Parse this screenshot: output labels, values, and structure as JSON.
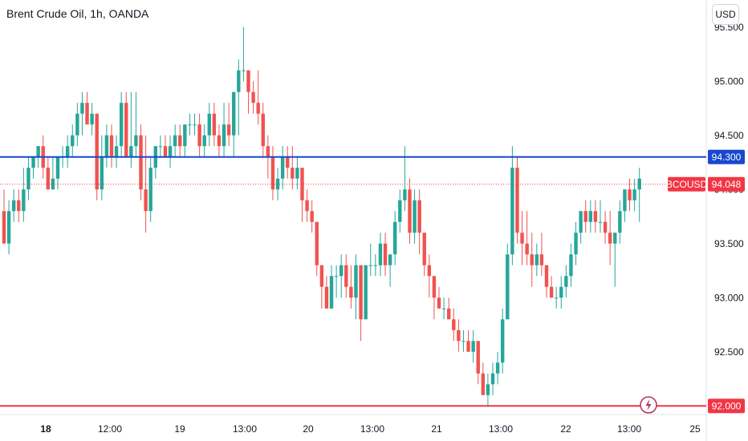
{
  "header": {
    "title": "Brent Crude Oil, 1h, OANDA",
    "currency": "USD"
  },
  "colors": {
    "up": "#26a69a",
    "down": "#ef5350",
    "resistance": "#1848cc",
    "support": "#f23645",
    "last_price": "#f23645"
  },
  "icons": {
    "alert": "lightning-alert-icon"
  },
  "chart_data": {
    "type": "candlestick",
    "title": "Brent Crude Oil, 1h, OANDA",
    "symbol": "BCOUSD",
    "ylim": [
      91.75,
      95.75
    ],
    "y_ticks": [
      "95.500",
      "95.000",
      "94.500",
      "94.000",
      "93.500",
      "93.000",
      "92.500",
      "92.000"
    ],
    "x_ticks": [
      {
        "label": "18",
        "bold": true
      },
      {
        "label": "12:00",
        "bold": false
      },
      {
        "label": "19",
        "bold": false
      },
      {
        "label": "13:00",
        "bold": false
      },
      {
        "label": "20",
        "bold": false
      },
      {
        "label": "13:00",
        "bold": false
      },
      {
        "label": "21",
        "bold": false
      },
      {
        "label": "13:00",
        "bold": false
      },
      {
        "label": "22",
        "bold": false
      },
      {
        "label": "13:00",
        "bold": false
      },
      {
        "label": "25",
        "bold": false
      }
    ],
    "horizontal_lines": [
      {
        "price": 94.3,
        "label": "94.300",
        "color": "#1848cc"
      },
      {
        "price": 92.0,
        "label": "92.000",
        "color": "#f23645"
      }
    ],
    "last_price": {
      "price": 94.048,
      "label": "94.048",
      "symbol": "BCOUSD"
    },
    "candles": [
      [
        93.8,
        94.0,
        93.5,
        93.5
      ],
      [
        93.5,
        93.9,
        93.4,
        93.8
      ],
      [
        93.8,
        94.0,
        93.7,
        93.9
      ],
      [
        93.9,
        94.0,
        93.7,
        93.8
      ],
      [
        93.8,
        94.2,
        93.7,
        94.0
      ],
      [
        94.0,
        94.3,
        93.9,
        94.2
      ],
      [
        94.2,
        94.3,
        94.1,
        94.3
      ],
      [
        94.3,
        94.4,
        94.2,
        94.4
      ],
      [
        94.4,
        94.5,
        94.1,
        94.2
      ],
      [
        94.2,
        94.3,
        94.0,
        94.0
      ],
      [
        94.0,
        94.3,
        94.0,
        94.1
      ],
      [
        94.1,
        94.3,
        94.0,
        94.3
      ],
      [
        94.3,
        94.4,
        94.2,
        94.3
      ],
      [
        94.3,
        94.5,
        94.2,
        94.4
      ],
      [
        94.4,
        94.6,
        94.3,
        94.5
      ],
      [
        94.5,
        94.8,
        94.4,
        94.7
      ],
      [
        94.7,
        94.9,
        94.5,
        94.8
      ],
      [
        94.8,
        94.9,
        94.6,
        94.6
      ],
      [
        94.6,
        94.8,
        94.5,
        94.7
      ],
      [
        94.7,
        94.7,
        93.9,
        94.0
      ],
      [
        94.0,
        94.5,
        93.9,
        94.3
      ],
      [
        94.3,
        94.6,
        94.2,
        94.5
      ],
      [
        94.5,
        94.6,
        94.2,
        94.3
      ],
      [
        94.3,
        94.5,
        94.2,
        94.4
      ],
      [
        94.4,
        94.9,
        94.3,
        94.8
      ],
      [
        94.8,
        94.9,
        94.3,
        94.3
      ],
      [
        94.3,
        94.9,
        94.2,
        94.4
      ],
      [
        94.4,
        94.9,
        94.3,
        94.5
      ],
      [
        94.5,
        94.6,
        93.9,
        94.0
      ],
      [
        94.0,
        94.5,
        93.6,
        93.8
      ],
      [
        93.8,
        94.3,
        93.7,
        94.2
      ],
      [
        94.2,
        94.4,
        94.1,
        94.4
      ],
      [
        94.4,
        94.5,
        94.3,
        94.4
      ],
      [
        94.4,
        94.5,
        94.3,
        94.3
      ],
      [
        94.3,
        94.5,
        94.2,
        94.4
      ],
      [
        94.4,
        94.6,
        94.3,
        94.5
      ],
      [
        94.5,
        94.6,
        94.3,
        94.4
      ],
      [
        94.4,
        94.6,
        94.3,
        94.6
      ],
      [
        94.6,
        94.7,
        94.5,
        94.6
      ],
      [
        94.6,
        94.7,
        94.5,
        94.6
      ],
      [
        94.6,
        94.7,
        94.3,
        94.4
      ],
      [
        94.4,
        94.6,
        94.3,
        94.5
      ],
      [
        94.5,
        94.8,
        94.4,
        94.7
      ],
      [
        94.7,
        94.8,
        94.4,
        94.5
      ],
      [
        94.5,
        94.6,
        94.3,
        94.4
      ],
      [
        94.4,
        94.8,
        94.3,
        94.6
      ],
      [
        94.6,
        94.8,
        94.4,
        94.5
      ],
      [
        94.5,
        94.9,
        94.3,
        94.9
      ],
      [
        94.9,
        95.2,
        94.5,
        95.1
      ],
      [
        95.1,
        95.5,
        95.0,
        95.1
      ],
      [
        95.1,
        95.1,
        94.7,
        94.9
      ],
      [
        94.9,
        95.0,
        94.7,
        94.8
      ],
      [
        94.8,
        95.1,
        94.6,
        94.7
      ],
      [
        94.7,
        94.8,
        94.3,
        94.4
      ],
      [
        94.4,
        94.5,
        94.1,
        94.3
      ],
      [
        94.3,
        94.4,
        93.9,
        94.0
      ],
      [
        94.0,
        94.2,
        93.9,
        94.1
      ],
      [
        94.1,
        94.4,
        94.0,
        94.3
      ],
      [
        94.3,
        94.4,
        94.1,
        94.2
      ],
      [
        94.2,
        94.4,
        94.0,
        94.1
      ],
      [
        94.1,
        94.3,
        94.0,
        94.2
      ],
      [
        94.2,
        94.2,
        93.7,
        93.9
      ],
      [
        93.9,
        94.0,
        93.7,
        93.8
      ],
      [
        93.8,
        93.9,
        93.6,
        93.7
      ],
      [
        93.7,
        93.7,
        93.2,
        93.3
      ],
      [
        93.3,
        93.3,
        92.9,
        93.1
      ],
      [
        93.1,
        93.2,
        92.9,
        92.9
      ],
      [
        92.9,
        93.3,
        92.9,
        93.2
      ],
      [
        93.2,
        93.3,
        93.0,
        93.2
      ],
      [
        93.2,
        93.4,
        93.0,
        93.3
      ],
      [
        93.3,
        93.4,
        93.0,
        93.1
      ],
      [
        93.1,
        93.3,
        92.9,
        93.0
      ],
      [
        93.0,
        93.4,
        92.8,
        93.3
      ],
      [
        93.3,
        93.3,
        92.6,
        92.8
      ],
      [
        92.8,
        93.3,
        92.8,
        93.3
      ],
      [
        93.3,
        93.5,
        93.2,
        93.3
      ],
      [
        93.3,
        93.4,
        93.2,
        93.3
      ],
      [
        93.3,
        93.6,
        93.2,
        93.5
      ],
      [
        93.5,
        93.6,
        93.2,
        93.3
      ],
      [
        93.3,
        93.4,
        93.1,
        93.4
      ],
      [
        93.4,
        93.8,
        93.3,
        93.7
      ],
      [
        93.7,
        94.0,
        93.6,
        93.9
      ],
      [
        93.9,
        94.4,
        93.8,
        94.0
      ],
      [
        94.0,
        94.1,
        93.5,
        93.6
      ],
      [
        93.6,
        94.0,
        93.5,
        93.9
      ],
      [
        93.9,
        94.0,
        93.4,
        93.6
      ],
      [
        93.6,
        93.6,
        93.2,
        93.3
      ],
      [
        93.3,
        93.4,
        93.0,
        93.2
      ],
      [
        93.2,
        93.2,
        92.8,
        93.0
      ],
      [
        93.0,
        93.1,
        92.9,
        92.9
      ],
      [
        92.9,
        93.0,
        92.8,
        92.9
      ],
      [
        92.9,
        93.0,
        92.8,
        92.8
      ],
      [
        92.8,
        92.9,
        92.6,
        92.7
      ],
      [
        92.7,
        92.8,
        92.5,
        92.6
      ],
      [
        92.6,
        92.7,
        92.5,
        92.6
      ],
      [
        92.6,
        92.7,
        92.5,
        92.5
      ],
      [
        92.5,
        92.7,
        92.4,
        92.6
      ],
      [
        92.6,
        92.6,
        92.2,
        92.3
      ],
      [
        92.3,
        92.4,
        92.1,
        92.1
      ],
      [
        92.1,
        92.3,
        92.0,
        92.2
      ],
      [
        92.2,
        92.4,
        92.1,
        92.3
      ],
      [
        92.3,
        92.5,
        92.2,
        92.4
      ],
      [
        92.4,
        92.9,
        92.3,
        92.8
      ],
      [
        92.8,
        93.5,
        92.8,
        93.4
      ],
      [
        93.4,
        94.4,
        93.3,
        94.2
      ],
      [
        94.2,
        94.3,
        93.5,
        93.6
      ],
      [
        93.6,
        93.8,
        93.3,
        93.5
      ],
      [
        93.5,
        93.8,
        93.3,
        93.4
      ],
      [
        93.4,
        93.6,
        93.1,
        93.3
      ],
      [
        93.3,
        93.5,
        93.2,
        93.4
      ],
      [
        93.4,
        93.6,
        93.2,
        93.3
      ],
      [
        93.3,
        93.3,
        93.0,
        93.1
      ],
      [
        93.1,
        93.2,
        93.0,
        93.0
      ],
      [
        93.0,
        93.1,
        92.9,
        93.0
      ],
      [
        93.0,
        93.2,
        92.9,
        93.1
      ],
      [
        93.1,
        93.3,
        93.0,
        93.2
      ],
      [
        93.2,
        93.5,
        93.1,
        93.4
      ],
      [
        93.4,
        93.7,
        93.3,
        93.6
      ],
      [
        93.6,
        93.8,
        93.5,
        93.8
      ],
      [
        93.8,
        93.9,
        93.6,
        93.7
      ],
      [
        93.7,
        93.9,
        93.6,
        93.8
      ],
      [
        93.8,
        93.9,
        93.6,
        93.7
      ],
      [
        93.7,
        93.9,
        93.6,
        93.7
      ],
      [
        93.7,
        93.8,
        93.5,
        93.6
      ],
      [
        93.6,
        93.8,
        93.3,
        93.5
      ],
      [
        93.5,
        93.6,
        93.1,
        93.6
      ],
      [
        93.6,
        93.9,
        93.5,
        93.8
      ],
      [
        93.8,
        94.0,
        93.7,
        94.0
      ],
      [
        94.0,
        94.1,
        93.8,
        93.9
      ],
      [
        93.9,
        94.1,
        93.8,
        94.0
      ],
      [
        94.0,
        94.2,
        93.7,
        94.1
      ]
    ]
  }
}
